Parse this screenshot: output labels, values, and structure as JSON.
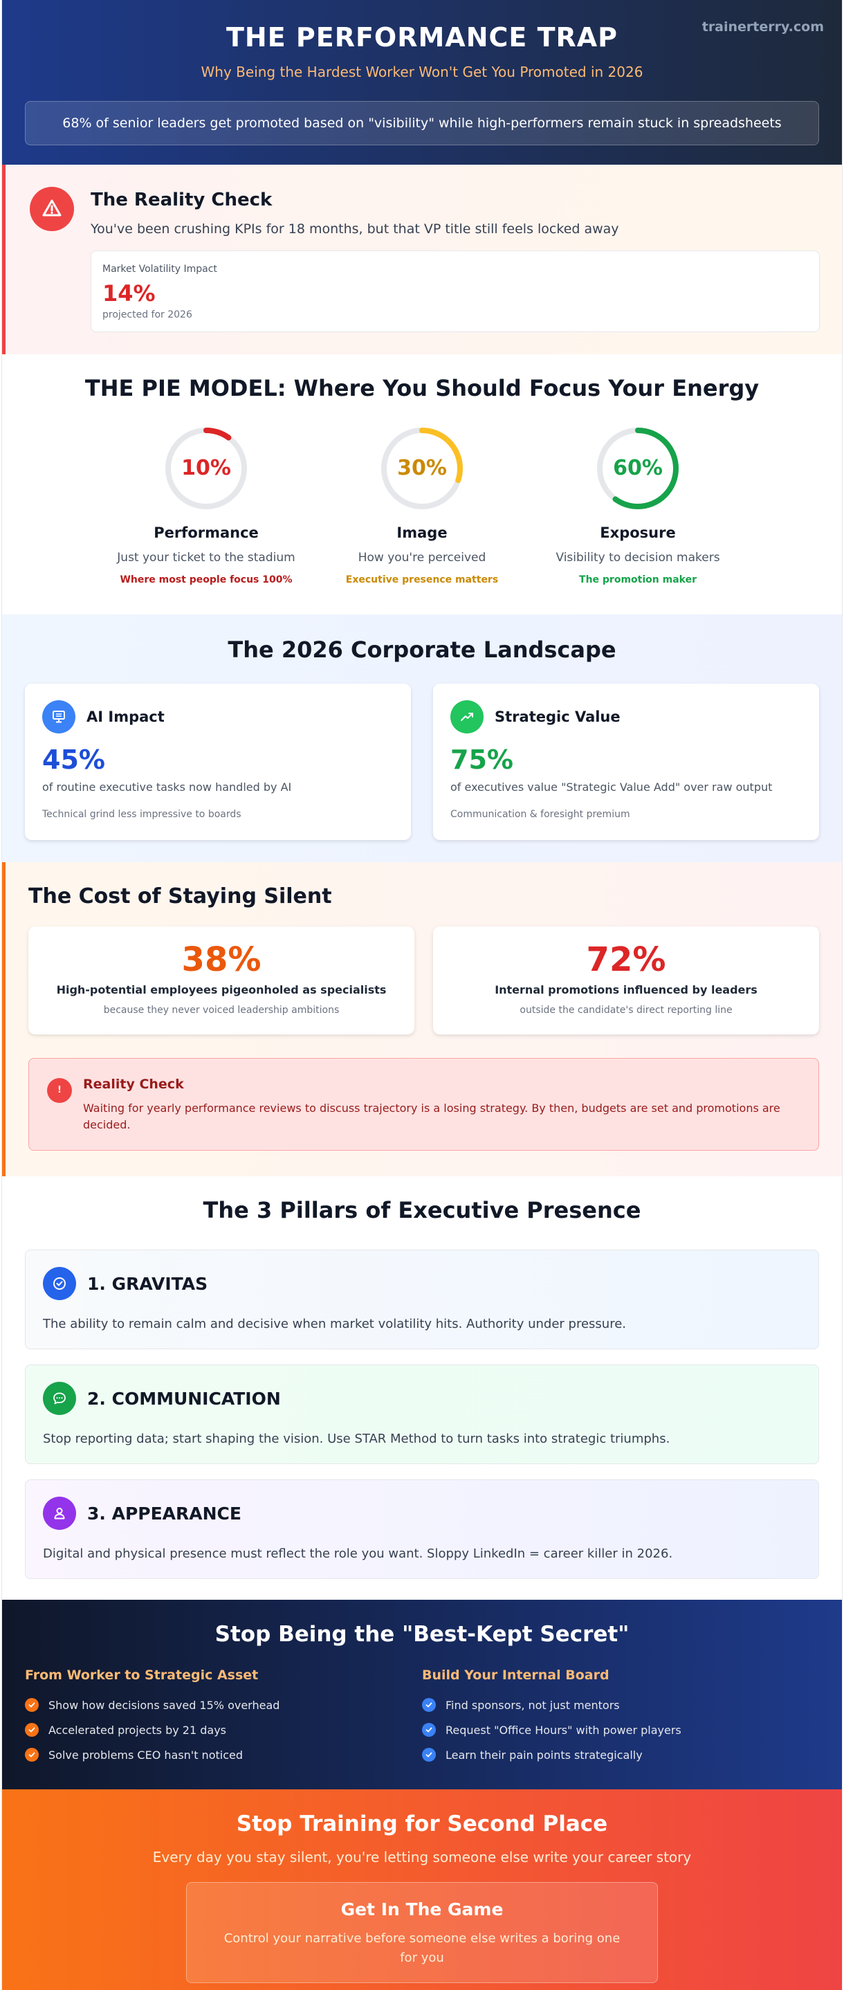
{
  "header": {
    "brand": "trainerterry.com",
    "title": "THE PERFORMANCE TRAP",
    "subtitle": "Why Being the Hardest Worker Won't Get You Promoted in 2026",
    "banner": "68% of senior leaders get promoted based on \"visibility\" while high-performers remain stuck in spreadsheets"
  },
  "reality": {
    "icon": "warning-icon",
    "title": "The Reality Check",
    "text": "You've been crushing KPIs for 18 months, but that VP title still feels locked away",
    "card": {
      "label": "Market Volatility Impact",
      "value": "14%",
      "note": "projected for 2026"
    }
  },
  "pie": {
    "title": "THE PIE MODEL: Where You Should Focus Your Energy",
    "items": [
      {
        "percent": "10%",
        "fraction": 0.1,
        "label": "Performance",
        "desc": "Just your ticket to the stadium",
        "note": "Where most people focus 100%",
        "color": "#dc2626"
      },
      {
        "percent": "30%",
        "fraction": 0.3,
        "label": "Image",
        "desc": "How you're perceived",
        "note": "Executive presence matters",
        "color": "#fbbf24"
      },
      {
        "percent": "60%",
        "fraction": 0.6,
        "label": "Exposure",
        "desc": "Visibility to decision makers",
        "note": "The promotion maker",
        "color": "#16a34a"
      }
    ]
  },
  "landscape": {
    "title": "The 2026 Corporate Landscape",
    "cards": [
      {
        "icon": "monitor-icon",
        "title": "AI Impact",
        "value": "45%",
        "desc": "of routine executive tasks now handled by AI",
        "note": "Technical grind less impressive to boards",
        "color": "#3b82f6",
        "value_color": "#1d4ed8"
      },
      {
        "icon": "trending-up-icon",
        "title": "Strategic Value",
        "value": "75%",
        "desc": "of executives value \"Strategic Value Add\" over raw output",
        "note": "Communication & foresight premium",
        "color": "#22c55e",
        "value_color": "#16a34a"
      }
    ]
  },
  "cost": {
    "title": "The Cost of Staying Silent",
    "cards": [
      {
        "value": "38%",
        "label": "High-potential employees pigeonholed as specialists",
        "note": "because they never voiced leadership ambitions",
        "color": "#ea580c"
      },
      {
        "value": "72%",
        "label": "Internal promotions influenced by leaders",
        "note": "outside the candidate's direct reporting line",
        "color": "#dc2626"
      }
    ],
    "alert": {
      "mark": "!",
      "title": "Reality Check",
      "text": "Waiting for yearly performance reviews to discuss trajectory is a losing strategy. By then, budgets are set and promotions are decided."
    }
  },
  "pillars": {
    "title": "The 3 Pillars of Executive Presence",
    "items": [
      {
        "icon": "check-circle-icon",
        "title": "1. GRAVITAS",
        "text": "The ability to remain calm and decisive when market volatility hits. Authority under pressure.",
        "color": "#2563eb"
      },
      {
        "icon": "chat-bubble-icon",
        "title": "2. COMMUNICATION",
        "text": "Stop reporting data; start shaping the vision. Use STAR Method to turn tasks into strategic triumphs.",
        "color": "#16a34a"
      },
      {
        "icon": "user-icon",
        "title": "3. APPEARANCE",
        "text": "Digital and physical presence must reflect the role you want. Sloppy LinkedIn = career killer in 2026.",
        "color": "#9333ea"
      }
    ]
  },
  "secret": {
    "title": "Stop Being the \"Best-Kept Secret\"",
    "columns": [
      {
        "title": "From Worker to Strategic Asset",
        "check_color": "#f97316",
        "items": [
          "Show how decisions saved 15% overhead",
          "Accelerated projects by 21 days",
          "Solve problems CEO hasn't noticed"
        ]
      },
      {
        "title": "Build Your Internal Board",
        "check_color": "#3b82f6",
        "items": [
          "Find sponsors, not just mentors",
          "Request \"Office Hours\" with power players",
          "Learn their pain points strategically"
        ]
      }
    ]
  },
  "footer": {
    "title": "Stop Training for Second Place",
    "subtitle": "Every day you stay silent, you're letting someone else write your career story",
    "box_title": "Get In The Game",
    "box_text": "Control your narrative before someone else writes a boring one for you"
  }
}
